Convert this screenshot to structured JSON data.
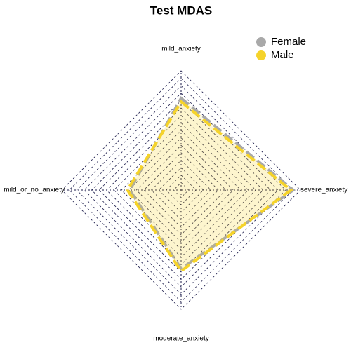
{
  "chart_data": {
    "type": "radar",
    "title": "Test MDAS",
    "categories": [
      "mild_anxiety",
      "severe_anxiety",
      "moderate_anxiety",
      "mild_or_no_anxiety"
    ],
    "ylim": [
      0,
      1
    ],
    "series": [
      {
        "name": "Female",
        "color": "#a9a9a9",
        "values": [
          0.77,
          0.94,
          0.66,
          0.43
        ]
      },
      {
        "name": "Male",
        "color": "#f5d32a",
        "values": [
          0.74,
          0.92,
          0.68,
          0.45
        ]
      }
    ],
    "legend": "top-right"
  }
}
